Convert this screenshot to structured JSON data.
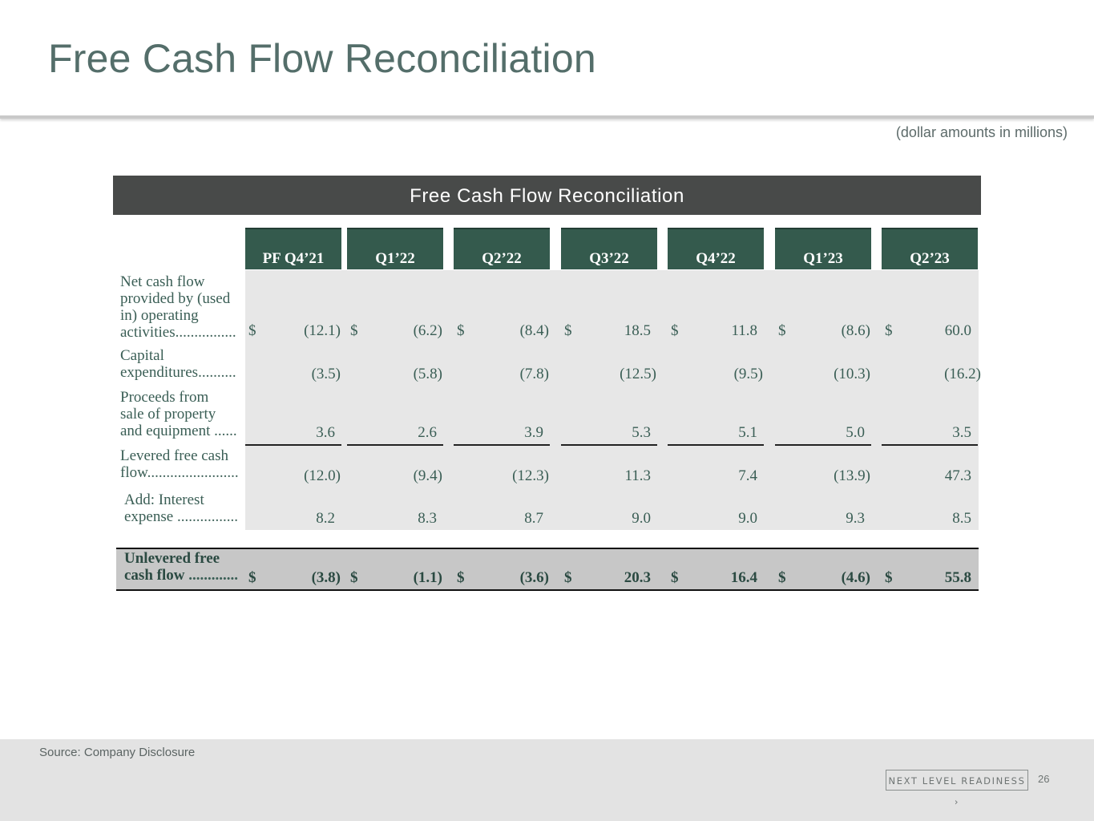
{
  "slide": {
    "title": "Free Cash Flow Reconciliation",
    "units_note": "(dollar amounts in millions)",
    "table_title": "Free Cash Flow Reconciliation",
    "source": "Source: Company Disclosure",
    "brand": "NEXT LEVEL READINESS ›",
    "page_number": "26"
  },
  "table": {
    "columns": [
      "PF Q4’21",
      "Q1’22",
      "Q2’22",
      "Q3’22",
      "Q4’22",
      "Q1’23",
      "Q2’23"
    ],
    "currency_symbol": "$",
    "rows": [
      {
        "label_lines": [
          "Net cash flow",
          "provided by (used",
          "in) operating",
          "activities"
        ],
        "leader": "................",
        "values": [
          "(12.1)",
          "(6.2)",
          "(8.4)",
          "18.5",
          "11.8",
          "(8.6)",
          "60.0"
        ]
      },
      {
        "label_lines": [
          "Capital",
          "expenditures"
        ],
        "leader": "..........",
        "values": [
          "(3.5)",
          "(5.8)",
          "(7.8)",
          "(12.5)",
          "(9.5)",
          "(10.3)",
          "(16.2)"
        ]
      },
      {
        "label_lines": [
          "Proceeds from",
          "sale of property",
          "and equipment "
        ],
        "leader": "......",
        "values": [
          "3.6",
          "2.6",
          "3.9",
          "5.3",
          "5.1",
          "5.0",
          "3.5"
        ]
      },
      {
        "label_lines": [
          "Levered free cash",
          "flow"
        ],
        "leader": "........................",
        "values": [
          "(12.0)",
          "(9.4)",
          "(12.3)",
          "11.3",
          "7.4",
          "(13.9)",
          "47.3"
        ]
      },
      {
        "label_lines": [
          "Add: Interest",
          "expense "
        ],
        "leader": "................",
        "values": [
          "8.2",
          "8.3",
          "8.7",
          "9.0",
          "9.0",
          "9.3",
          "8.5"
        ]
      }
    ],
    "total": {
      "label_lines": [
        "Unlevered free",
        "cash flow "
      ],
      "leader": ".............",
      "values": [
        "(3.8)",
        "(1.1)",
        "(3.6)",
        "20.3",
        "16.4",
        "(4.6)",
        "55.8"
      ]
    }
  }
}
